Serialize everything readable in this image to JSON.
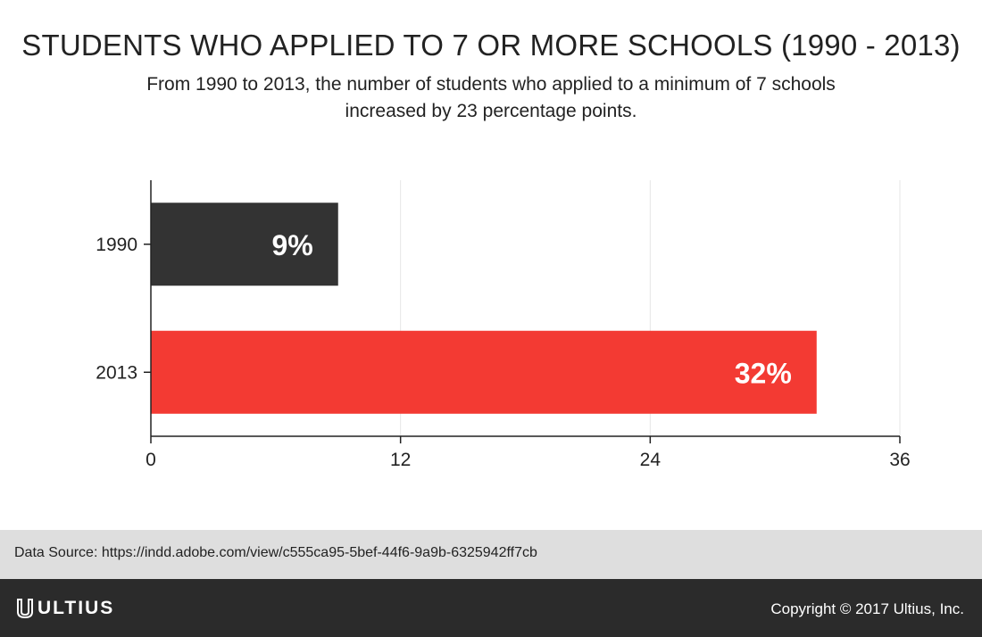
{
  "header": {
    "title": "STUDENTS WHO APPLIED TO 7 OR MORE SCHOOLS (1990 - 2013)",
    "subtitle": "From 1990 to 2013, the number of students who applied to a minimum of 7 schools increased by 23 percentage points."
  },
  "chart_data": {
    "type": "bar",
    "orientation": "horizontal",
    "categories": [
      "1990",
      "2013"
    ],
    "values": [
      9,
      32
    ],
    "data_labels": [
      "9%",
      "32%"
    ],
    "bar_colors": [
      "#333333",
      "#f33a33"
    ],
    "x_ticks": [
      "0",
      "12",
      "24",
      "36"
    ],
    "xlim": [
      0,
      36
    ],
    "grid": true,
    "title": "",
    "xlabel": "",
    "ylabel": ""
  },
  "source": {
    "text": "Data Source: https://indd.adobe.com/view/c555ca95-5bef-44f6-9a9b-6325942ff7cb"
  },
  "footer": {
    "logo_text": "ULTIUS",
    "copyright": "Copyright © 2017 Ultius, Inc."
  },
  "colors": {
    "footer_bg": "#2b2b2b",
    "source_bg": "#dedede",
    "accent_red": "#f33a33"
  }
}
